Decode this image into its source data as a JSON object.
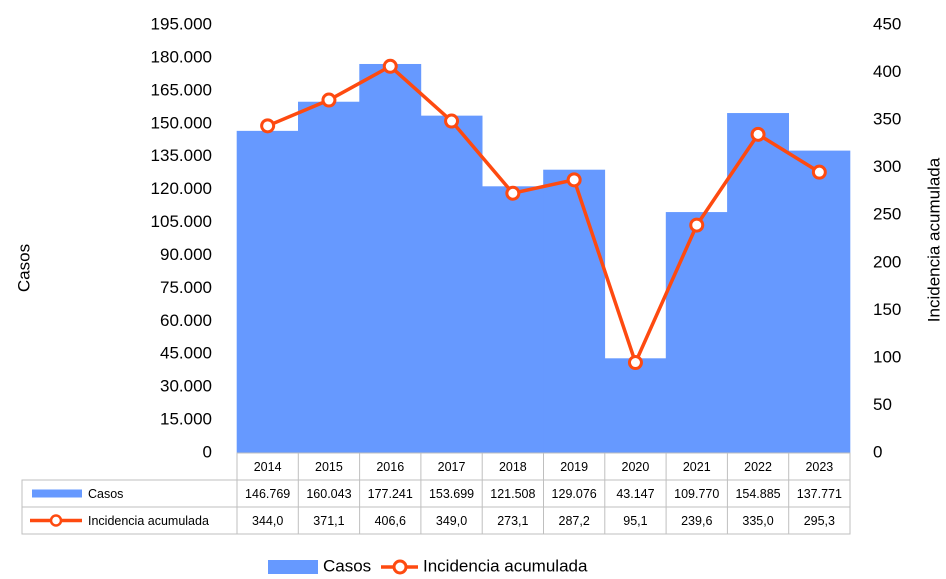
{
  "chart_data": {
    "type": "bar_line",
    "categories": [
      "2014",
      "2015",
      "2016",
      "2017",
      "2018",
      "2019",
      "2020",
      "2021",
      "2022",
      "2023"
    ],
    "series": [
      {
        "name": "Casos",
        "type": "bar",
        "color": "#6699ff",
        "values": [
          146769,
          160043,
          177241,
          153699,
          121508,
          129076,
          43147,
          109770,
          154885,
          137771
        ],
        "value_labels": [
          "146.769",
          "160.043",
          "177.241",
          "153.699",
          "121.508",
          "129.076",
          "43.147",
          "109.770",
          "154.885",
          "137.771"
        ]
      },
      {
        "name": "Incidencia acumulada",
        "type": "line",
        "axis": "y2",
        "color": "#fe4a10",
        "values": [
          344.0,
          371.1,
          406.6,
          349.0,
          273.1,
          287.2,
          95.1,
          239.6,
          335.0,
          295.3
        ],
        "value_labels": [
          "344,0",
          "371,1",
          "406,6",
          "349,0",
          "273,1",
          "287,2",
          "95,1",
          "239,6",
          "335,0",
          "295,3"
        ]
      }
    ],
    "ylabel": "Casos",
    "y2label": "Incidencia acumulada",
    "ylim": [
      0,
      195000
    ],
    "yticks": [
      0,
      {
        "value": 15000,
        "label": "15.000"
      },
      {
        "value": 30000,
        "label": "30.000"
      },
      {
        "value": 45000,
        "label": "45.000"
      },
      {
        "value": 60000,
        "label": "60.000"
      },
      {
        "value": 75000,
        "label": "75.000"
      },
      {
        "value": 90000,
        "label": "90.000"
      },
      {
        "value": 105000,
        "label": "105.000"
      },
      {
        "value": 120000,
        "label": "120.000"
      },
      {
        "value": 135000,
        "label": "135.000"
      },
      {
        "value": 150000,
        "label": "150.000"
      },
      {
        "value": 165000,
        "label": "165.000"
      },
      {
        "value": 180000,
        "label": "180.000"
      },
      {
        "value": 195000,
        "label": "195.000"
      }
    ],
    "y2lim": [
      0,
      450
    ],
    "y2ticks": [
      0,
      50,
      100,
      150,
      200,
      250,
      300,
      350,
      400,
      450
    ],
    "legend": "bottom",
    "data_table": true
  }
}
